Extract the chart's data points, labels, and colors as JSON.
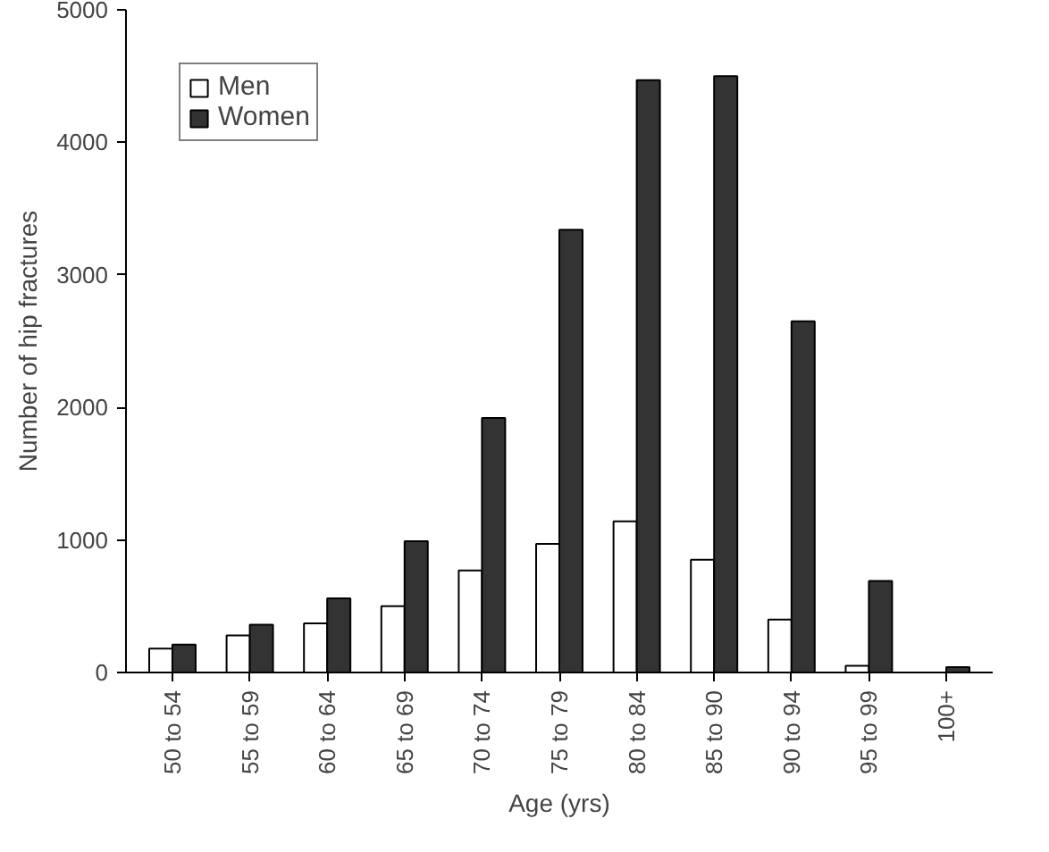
{
  "chart_data": {
    "type": "bar",
    "xlabel": "Age (yrs)",
    "ylabel": "Number of hip fractures",
    "categories": [
      "50 to 54",
      "55 to 59",
      "60 to 64",
      "65 to 69",
      "70 to 74",
      "75 to 79",
      "80 to 84",
      "85 to 90",
      "90 to 94",
      "95 to 99",
      "100+"
    ],
    "series": [
      {
        "name": "Men",
        "color": "#ffffff",
        "values": [
          180,
          280,
          370,
          500,
          770,
          970,
          1140,
          850,
          400,
          50,
          null
        ]
      },
      {
        "name": "Women",
        "color": "#333333",
        "values": [
          210,
          360,
          560,
          990,
          1920,
          3340,
          4470,
          4500,
          2650,
          690,
          40
        ]
      }
    ],
    "ylim": [
      0,
      5000
    ],
    "yticks": [
      0,
      1000,
      2000,
      3000,
      4000,
      5000
    ],
    "grid": false,
    "legend": "top left"
  }
}
